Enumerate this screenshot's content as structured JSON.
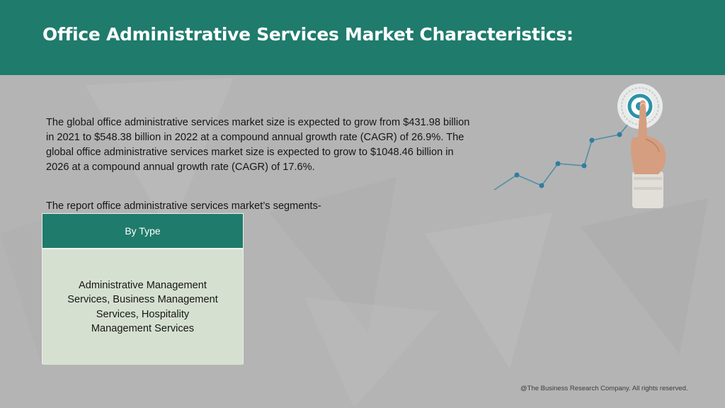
{
  "header": {
    "title": "Office Administrative Services Market Characteristics:"
  },
  "main": {
    "intro": "The global office administrative services market size is expected to grow from $431.98 billion in 2021 to $548.38 billion in 2022 at a compound annual growth rate (CAGR) of 26.9%. The global office administrative services market size is expected to grow to $1048.46 billion in 2026 at a compound annual growth rate (CAGR) of 17.6%.",
    "segments_label": "The report office administrative services market’s segments-",
    "segment_table": {
      "header": "By Type",
      "body": "Administrative Management Services, Business Management Services, Hospitality Management Services"
    }
  },
  "footer": {
    "copyright": "@The Business Research Company. All rights reserved."
  },
  "colors": {
    "header_bg": "#1f7b6c",
    "background": "#b4b4b4",
    "table_body_bg": "#d6e0d0",
    "chart_line": "#4f8fa6"
  }
}
